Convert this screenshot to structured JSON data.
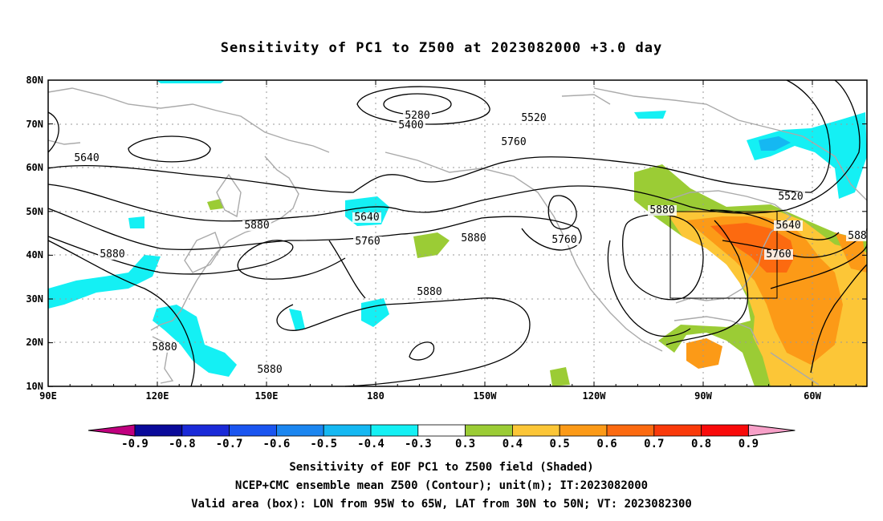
{
  "title": "Sensitivity of PC1 to Z500 at 2023082000 +3.0 day",
  "map": {
    "lat_ticks": [
      "80N",
      "70N",
      "60N",
      "50N",
      "40N",
      "30N",
      "20N",
      "10N"
    ],
    "lon_ticks": [
      "90E",
      "120E",
      "150E",
      "180",
      "150W",
      "120W",
      "90W",
      "60W"
    ],
    "contour_labels": [
      "5280",
      "5400",
      "5520",
      "5640",
      "5640",
      "5760",
      "5880",
      "5880",
      "5760",
      "5880",
      "5880",
      "5880",
      "5760",
      "5880",
      "5880",
      "5520",
      "5640",
      "5760",
      "588"
    ],
    "valid_box": {
      "lon_from": "95W",
      "lon_to": "65W",
      "lat_from": "30N",
      "lat_to": "50N"
    }
  },
  "colorbar": {
    "labels": [
      "-0.9",
      "-0.8",
      "-0.7",
      "-0.6",
      "-0.5",
      "-0.4",
      "-0.3",
      "0.3",
      "0.4",
      "0.5",
      "0.6",
      "0.7",
      "0.8",
      "0.9"
    ],
    "colors": [
      "#c0007f",
      "#0a0a9a",
      "#1a2ad8",
      "#1a55f0",
      "#1b86f0",
      "#15b8f2",
      "#14f0f4",
      "#ffffff",
      "#9bcc35",
      "#fcc637",
      "#fc9a17",
      "#fc6a10",
      "#fa3a0a",
      "#f90a0a",
      "#f7a0c8"
    ]
  },
  "captions": {
    "line1": "Sensitivity of EOF PC1 to Z500 field (Shaded)",
    "line2": "NCEP+CMC ensemble mean Z500 (Contour); unit(m); IT:2023082000",
    "line3": "Valid area (box): LON from 95W to 65W, LAT from 30N to 50N; VT: 2023082300"
  }
}
